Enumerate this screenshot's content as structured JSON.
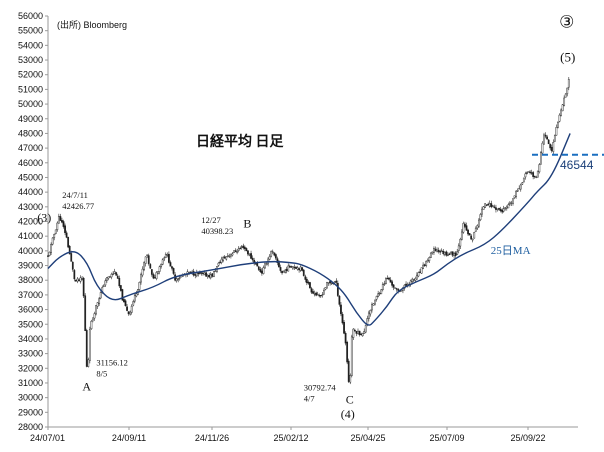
{
  "chart_data": {
    "type": "candlestick",
    "title": "日経平均 日足",
    "source": "(出所) Bloomberg",
    "ylim": [
      28000,
      56000
    ],
    "y_ticks": [
      28000,
      29000,
      30000,
      31000,
      32000,
      33000,
      34000,
      35000,
      36000,
      37000,
      38000,
      39000,
      40000,
      41000,
      42000,
      43000,
      44000,
      45000,
      46000,
      47000,
      48000,
      49000,
      50000,
      51000,
      52000,
      53000,
      54000,
      55000,
      56000
    ],
    "x_ticks": [
      "24/07/01",
      "24/09/11",
      "24/11/26",
      "25/02/12",
      "25/04/25",
      "25/07/09",
      "25/09/22"
    ],
    "price_path": [
      [
        "24/07/01",
        39600
      ],
      [
        "24/07/11",
        42400
      ],
      [
        "24/07/17",
        41100
      ],
      [
        "24/07/25",
        37900
      ],
      [
        "24/08/01",
        38100
      ],
      [
        "24/08/05",
        31200
      ],
      [
        "24/08/07",
        34700
      ],
      [
        "24/08/13",
        36300
      ],
      [
        "24/08/21",
        38000
      ],
      [
        "24/08/30",
        38600
      ],
      [
        "24/09/06",
        36500
      ],
      [
        "24/09/11",
        35700
      ],
      [
        "24/09/20",
        37700
      ],
      [
        "24/09/27",
        39800
      ],
      [
        "24/10/03",
        38000
      ],
      [
        "24/10/15",
        39900
      ],
      [
        "24/10/23",
        38100
      ],
      [
        "24/11/05",
        38500
      ],
      [
        "24/11/26",
        38300
      ],
      [
        "24/12/05",
        39400
      ],
      [
        "24/12/27",
        40300
      ],
      [
        "25/01/06",
        39300
      ],
      [
        "25/01/14",
        38500
      ],
      [
        "25/01/24",
        40000
      ],
      [
        "25/02/03",
        38500
      ],
      [
        "25/02/12",
        39000
      ],
      [
        "25/02/21",
        38800
      ],
      [
        "25/03/03",
        37300
      ],
      [
        "25/03/11",
        36800
      ],
      [
        "25/03/18",
        37800
      ],
      [
        "25/03/26",
        37900
      ],
      [
        "25/03/31",
        35600
      ],
      [
        "25/04/04",
        33800
      ],
      [
        "25/04/07",
        31100
      ],
      [
        "25/04/09",
        31700
      ],
      [
        "25/04/10",
        34600
      ],
      [
        "25/04/21",
        34300
      ],
      [
        "25/04/25",
        35700
      ],
      [
        "25/05/13",
        38200
      ],
      [
        "25/05/23",
        37200
      ],
      [
        "25/06/10",
        38200
      ],
      [
        "25/06/27",
        40100
      ],
      [
        "25/07/09",
        39800
      ],
      [
        "25/07/18",
        39800
      ],
      [
        "25/07/24",
        41800
      ],
      [
        "25/08/01",
        40700
      ],
      [
        "25/08/13",
        43300
      ],
      [
        "25/08/29",
        42700
      ],
      [
        "25/09/05",
        43100
      ],
      [
        "25/09/22",
        45500
      ],
      [
        "25/09/30",
        44900
      ],
      [
        "25/10/07",
        48000
      ],
      [
        "25/10/14",
        46800
      ],
      [
        "25/10/21",
        49300
      ],
      [
        "25/10/29",
        51300
      ],
      [
        "25/10/31",
        52400
      ]
    ],
    "ma25_path": [
      [
        "24/07/01",
        38800
      ],
      [
        "24/07/11",
        39600
      ],
      [
        "24/07/25",
        40100
      ],
      [
        "24/08/05",
        39200
      ],
      [
        "24/08/13",
        37600
      ],
      [
        "24/08/27",
        36500
      ],
      [
        "24/09/11",
        37000
      ],
      [
        "24/10/03",
        37500
      ],
      [
        "24/10/23",
        38300
      ],
      [
        "24/11/26",
        38700
      ],
      [
        "24/12/27",
        39100
      ],
      [
        "25/01/24",
        39300
      ],
      [
        "25/02/12",
        39200
      ],
      [
        "25/02/21",
        39100
      ],
      [
        "25/03/11",
        38500
      ],
      [
        "25/03/26",
        37700
      ],
      [
        "25/04/04",
        37000
      ],
      [
        "25/04/14",
        35800
      ],
      [
        "25/04/25",
        34800
      ],
      [
        "25/05/01",
        35200
      ],
      [
        "25/05/13",
        36200
      ],
      [
        "25/05/23",
        37300
      ],
      [
        "25/06/10",
        37900
      ],
      [
        "25/06/27",
        38400
      ],
      [
        "25/07/09",
        39100
      ],
      [
        "25/07/24",
        39800
      ],
      [
        "25/08/13",
        40400
      ],
      [
        "25/08/29",
        41400
      ],
      [
        "25/09/22",
        43300
      ],
      [
        "25/09/30",
        44000
      ],
      [
        "25/10/14",
        45000
      ],
      [
        "25/10/31",
        48000
      ]
    ],
    "series": [
      {
        "name": "日経平均",
        "color": "#222222"
      },
      {
        "name": "25日MA",
        "color": "#1f3f7a"
      }
    ],
    "ma_label": "25日MA",
    "level_line": {
      "value": 46544,
      "label": "46544",
      "color": "#1a6fc0",
      "from": "25/09/22"
    },
    "annotations": [
      {
        "id": "peak-2024-07",
        "text": "(3)",
        "date": "24/07/11"
      },
      {
        "id": "peak-2024-07-info",
        "lines": [
          "24/7/11",
          "42426.77"
        ],
        "date": "24/07/11"
      },
      {
        "id": "low-2024-08",
        "text": "A",
        "date": "24/08/05"
      },
      {
        "id": "low-2024-08-info",
        "lines": [
          "31156.12",
          "8/5"
        ],
        "date": "24/08/05"
      },
      {
        "id": "peak-2024-12",
        "text": "B",
        "date": "24/12/27"
      },
      {
        "id": "peak-2024-12-info",
        "lines": [
          "12/27",
          "40398.23"
        ],
        "date": "24/12/27"
      },
      {
        "id": "low-2025-04",
        "text": "C",
        "date": "25/04/07"
      },
      {
        "id": "low-2025-04-wave",
        "text": "(4)",
        "date": "25/04/07"
      },
      {
        "id": "low-2025-04-info",
        "lines": [
          "30792.74",
          "4/7"
        ],
        "date": "25/04/07"
      },
      {
        "id": "wave-5",
        "text": "(5)",
        "date": "25/10/31"
      },
      {
        "id": "wave-3-circled",
        "text": "③",
        "date": "25/10/31"
      }
    ]
  }
}
